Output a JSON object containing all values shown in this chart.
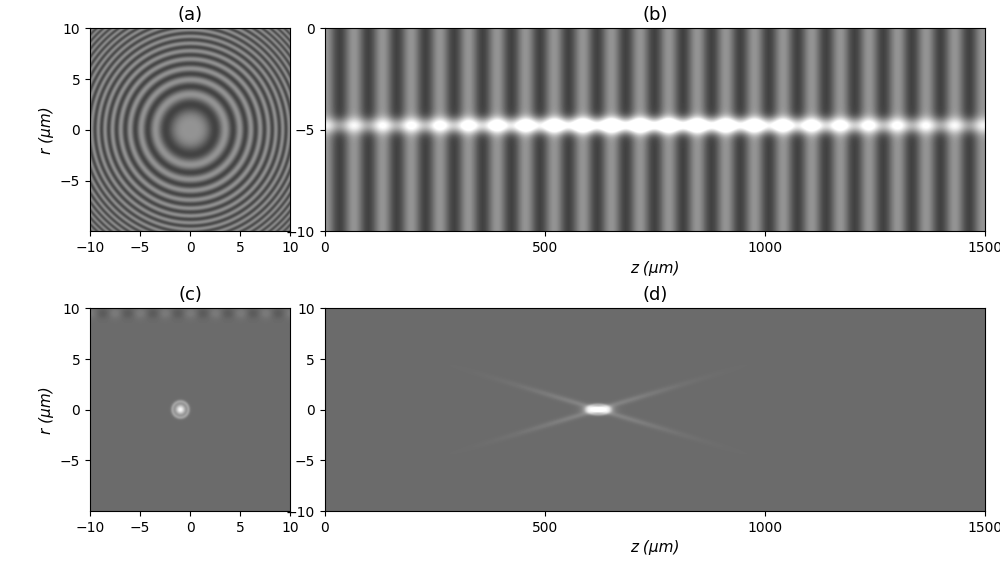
{
  "panel_a": {
    "title": "(a)",
    "ylabel": "r (μm)",
    "xlim": [
      -10,
      10
    ],
    "ylim": [
      -10,
      10
    ],
    "xticks": [
      -10,
      -5,
      0,
      5,
      10
    ],
    "yticks": [
      -5,
      0,
      5,
      10
    ]
  },
  "panel_b": {
    "title": "(b)",
    "xlabel": "z (μm)",
    "xlim": [
      0,
      1500
    ],
    "ylim": [
      -10,
      0
    ],
    "xticks": [
      0,
      500,
      1000,
      1500
    ],
    "yticks": [
      -10,
      -5,
      0
    ]
  },
  "panel_c": {
    "title": "(c)",
    "ylabel": "r (μm)",
    "xlim": [
      -10,
      10
    ],
    "ylim": [
      -10,
      10
    ],
    "xticks": [
      -10,
      -5,
      0,
      5,
      10
    ],
    "yticks": [
      -5,
      0,
      5,
      10
    ]
  },
  "panel_d": {
    "title": "(d)",
    "xlabel": "z (μm)",
    "xlim": [
      0,
      1500
    ],
    "ylim": [
      -10,
      10
    ],
    "xticks": [
      0,
      500,
      1000,
      1500
    ],
    "yticks": [
      -10,
      -5,
      0,
      5,
      10
    ]
  },
  "background_gray": 0.42,
  "fringe_amplitude": 0.16,
  "title_fontsize": 13,
  "label_fontsize": 11,
  "tick_fontsize": 10
}
